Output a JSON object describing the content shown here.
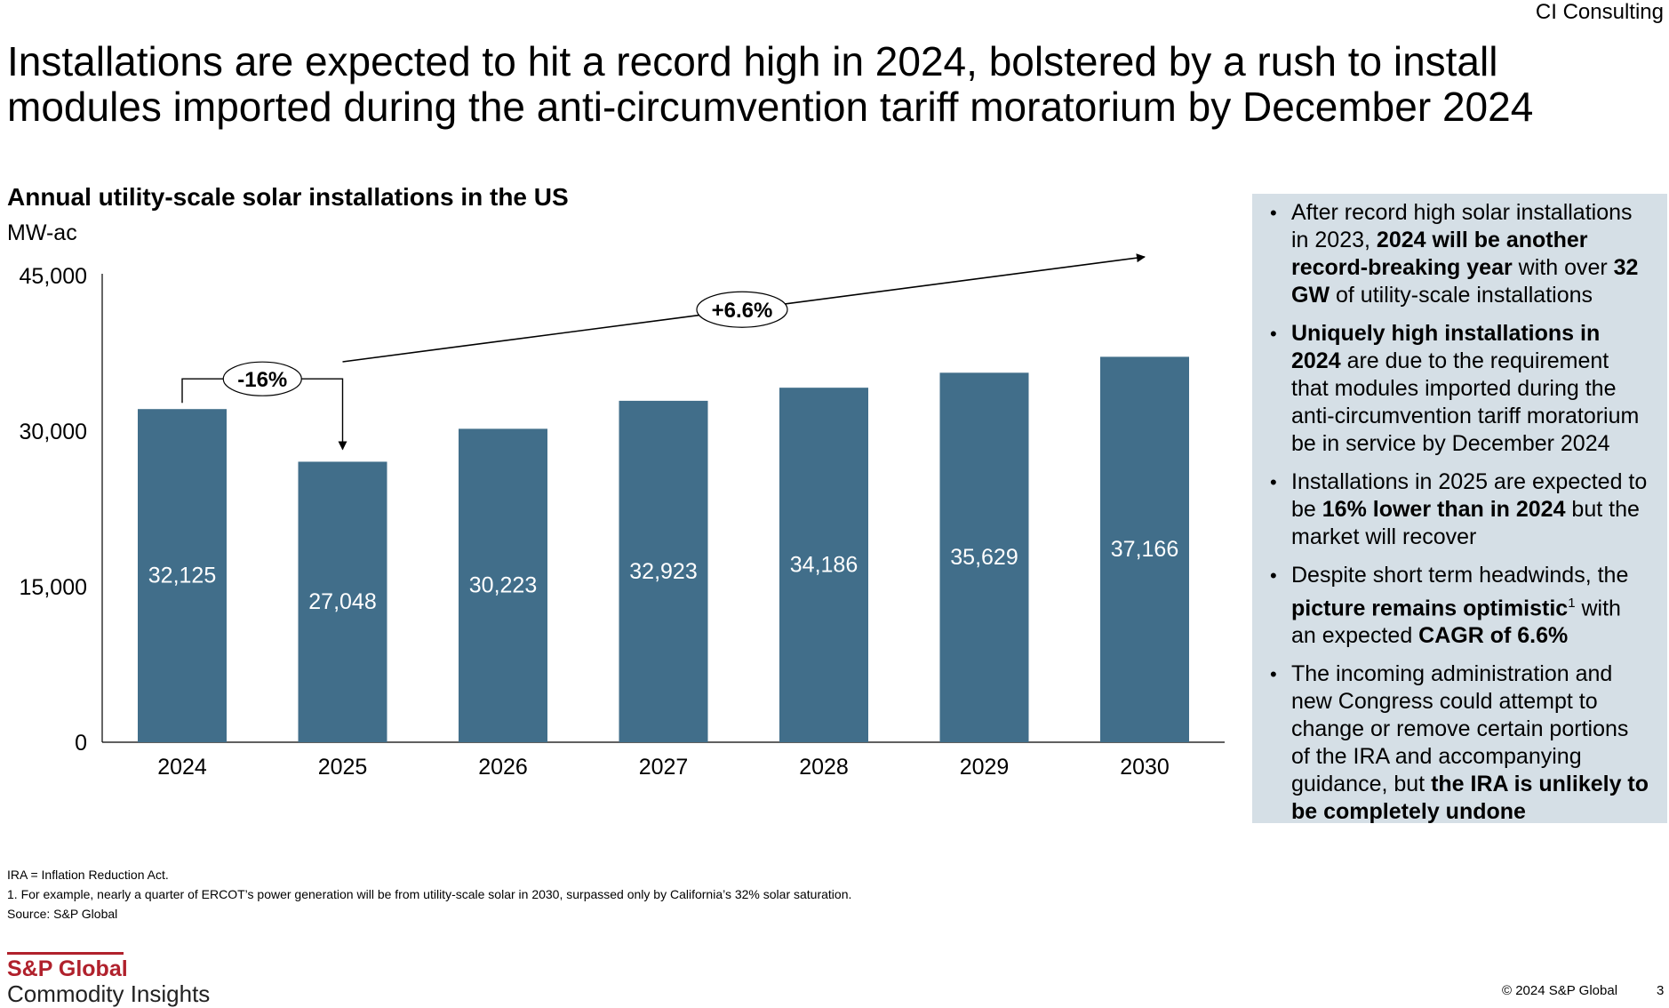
{
  "brand": "CI Consulting",
  "headline": "Installations are expected to hit a record high in 2024, bolstered by a rush to install modules imported during the anti-circumvention tariff moratorium by December 2024",
  "chart_data": {
    "type": "bar",
    "title": "Annual utility-scale solar installations in the US",
    "ylabel": "MW-ac",
    "xlabel": "",
    "categories": [
      "2024",
      "2025",
      "2026",
      "2027",
      "2028",
      "2029",
      "2030"
    ],
    "values": [
      32125,
      27048,
      30223,
      32923,
      34186,
      35629,
      37166
    ],
    "value_labels": [
      "32,125",
      "27,048",
      "30,223",
      "32,923",
      "34,186",
      "35,629",
      "37,166"
    ],
    "ylim": [
      0,
      45000
    ],
    "yticks": [
      0,
      15000,
      30000,
      45000
    ],
    "ytick_labels": [
      "0",
      "15,000",
      "30,000",
      "45,000"
    ],
    "grid": false,
    "bar_color": "#416e8a",
    "annotations": [
      {
        "label": "-16%",
        "from": "2024",
        "to": "2025"
      },
      {
        "label": "+6.6%",
        "from": "2025",
        "to": "2030"
      }
    ]
  },
  "callout": {
    "background": "#d5dfe6",
    "bullets": [
      [
        {
          "t": "After record high solar installations in 2023, "
        },
        {
          "t": "2024 will be another record-breaking year",
          "b": true
        },
        {
          "t": " with over "
        },
        {
          "t": "32 GW",
          "b": true
        },
        {
          "t": " of utility-scale installations"
        }
      ],
      [
        {
          "t": "Uniquely high installations in 2024",
          "b": true
        },
        {
          "t": " are due to the requirement that modules imported during the anti-circumvention tariff moratorium be in service by December 2024"
        }
      ],
      [
        {
          "t": "Installations in 2025 are expected to be "
        },
        {
          "t": "16% lower than in 2024",
          "b": true
        },
        {
          "t": " but the market will recover"
        }
      ],
      [
        {
          "t": "Despite short term headwinds, the "
        },
        {
          "t": "picture remains optimistic",
          "b": true
        },
        {
          "t": "1",
          "sup": true
        },
        {
          "t": " with an expected "
        },
        {
          "t": "CAGR of 6.6%",
          "b": true
        }
      ],
      [
        {
          "t": "The incoming administration and new Congress could attempt to change or remove certain portions of the IRA and accompanying guidance, but "
        },
        {
          "t": "the IRA is unlikely to be completely undone",
          "b": true
        }
      ]
    ]
  },
  "footnotes": {
    "abbrev": "IRA = Inflation Reduction Act.",
    "note1": "1. For example, nearly a quarter of ERCOT’s power generation will be from utility-scale solar in 2030, surpassed only by California’s 32% solar saturation.",
    "source": "Source: S&P Global"
  },
  "logo": {
    "main": "S&P Global",
    "sub": "Commodity Insights",
    "color": "#b0212c"
  },
  "copyright": "© 2024 S&P Global",
  "page_number": "3"
}
